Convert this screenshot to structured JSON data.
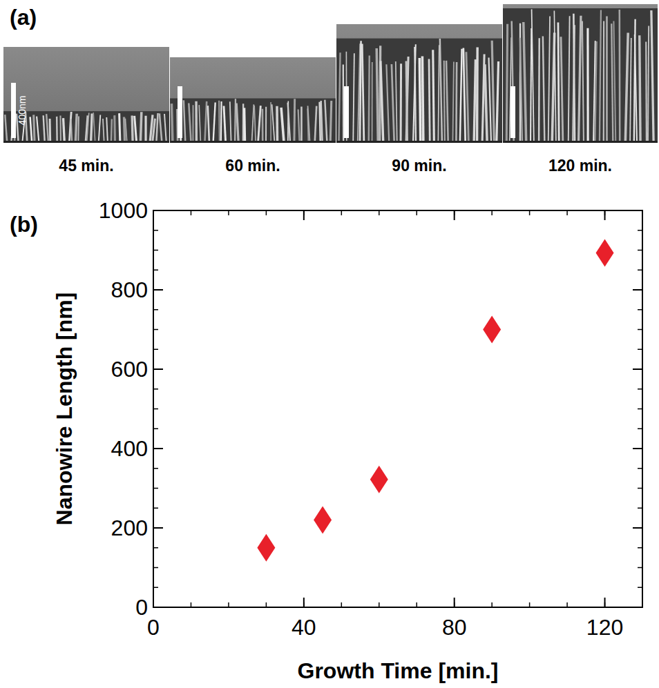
{
  "panel_a": {
    "label": "(a)",
    "scale_bar": "400nm",
    "images": [
      {
        "caption": "45 min."
      },
      {
        "caption": "60 min."
      },
      {
        "caption": "90 min."
      },
      {
        "caption": "120 min."
      }
    ]
  },
  "chart_data": {
    "type": "scatter",
    "label": "(b)",
    "x_label": "Growth Time [min.]",
    "y_label": "Nanowire Length [nm]",
    "x": [
      30,
      45,
      60,
      90,
      120
    ],
    "values": [
      150,
      220,
      322,
      700,
      893
    ],
    "color": "#e8202a",
    "marker": "diamond",
    "xlim": [
      0,
      130
    ],
    "ylim": [
      0,
      1000
    ],
    "xticks": [
      0,
      40,
      80,
      120
    ],
    "yticks": [
      0,
      200,
      400,
      600,
      800,
      1000
    ]
  }
}
